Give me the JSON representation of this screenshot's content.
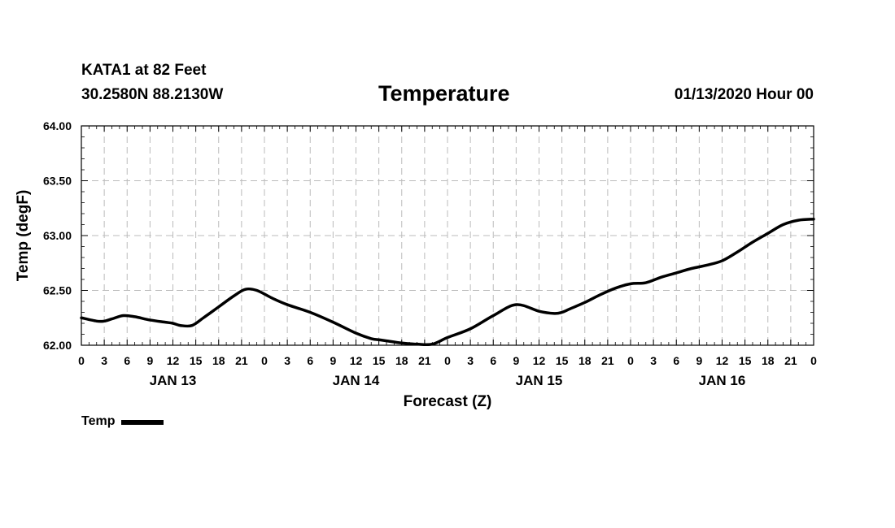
{
  "header": {
    "station": "KATA1 at 82 Feet",
    "coords": "30.2580N 88.2130W",
    "title": "Temperature",
    "forecast_time": "01/13/2020 Hour 00"
  },
  "legend": {
    "label": "Temp"
  },
  "colors": {
    "line": "#000000",
    "grid": "#bbbbbb"
  },
  "chart_data": {
    "type": "line",
    "title": "Temperature",
    "xlabel": "Forecast (Z)",
    "ylabel": "Temp (degF)",
    "ylim": [
      62.0,
      64.0
    ],
    "xlim": [
      0,
      96
    ],
    "yticks": [
      62.0,
      62.5,
      63.0,
      63.5,
      64.0
    ],
    "ytick_labels": [
      "62.00",
      "62.50",
      "63.00",
      "63.50",
      "64.00"
    ],
    "xticks": [
      0,
      3,
      6,
      9,
      12,
      15,
      18,
      21,
      24,
      27,
      30,
      33,
      36,
      39,
      42,
      45,
      48,
      51,
      54,
      57,
      60,
      63,
      66,
      69,
      72,
      75,
      78,
      81,
      84,
      87,
      90,
      93,
      96
    ],
    "xtick_labels": [
      "0",
      "3",
      "6",
      "9",
      "12",
      "15",
      "18",
      "21",
      "0",
      "3",
      "6",
      "9",
      "12",
      "15",
      "18",
      "21",
      "0",
      "3",
      "6",
      "9",
      "12",
      "15",
      "18",
      "21",
      "0",
      "3",
      "6",
      "9",
      "12",
      "15",
      "18",
      "21",
      "0"
    ],
    "day_labels": [
      {
        "label": "JAN 13",
        "x": 12
      },
      {
        "label": "JAN 14",
        "x": 36
      },
      {
        "label": "JAN 15",
        "x": 60
      },
      {
        "label": "JAN 16",
        "x": 84
      }
    ],
    "grid": true,
    "legend_position": "bottom-left",
    "series": [
      {
        "name": "Temp",
        "x": [
          0,
          2,
          3,
          4,
          5.5,
          7,
          9,
          11,
          12,
          13,
          14.5,
          16,
          18,
          20,
          21.5,
          23,
          25,
          27,
          30,
          33,
          36,
          38,
          39,
          40,
          42,
          44,
          46,
          48,
          51,
          54,
          57,
          60,
          62,
          63,
          64,
          66,
          68,
          70,
          72,
          74,
          76,
          78,
          80,
          82,
          84,
          86,
          88,
          90,
          92,
          94,
          96
        ],
        "y": [
          62.25,
          62.22,
          62.22,
          62.24,
          62.27,
          62.26,
          62.23,
          62.21,
          62.2,
          62.18,
          62.18,
          62.25,
          62.35,
          62.45,
          62.51,
          62.5,
          62.43,
          62.37,
          62.3,
          62.21,
          62.11,
          62.06,
          62.05,
          62.04,
          62.02,
          62.01,
          62.01,
          62.07,
          62.15,
          62.27,
          62.37,
          62.31,
          62.29,
          62.3,
          62.33,
          62.39,
          62.46,
          62.52,
          62.56,
          62.57,
          62.62,
          62.66,
          62.7,
          62.73,
          62.77,
          62.85,
          62.94,
          63.02,
          63.1,
          63.14,
          63.15
        ]
      }
    ]
  }
}
